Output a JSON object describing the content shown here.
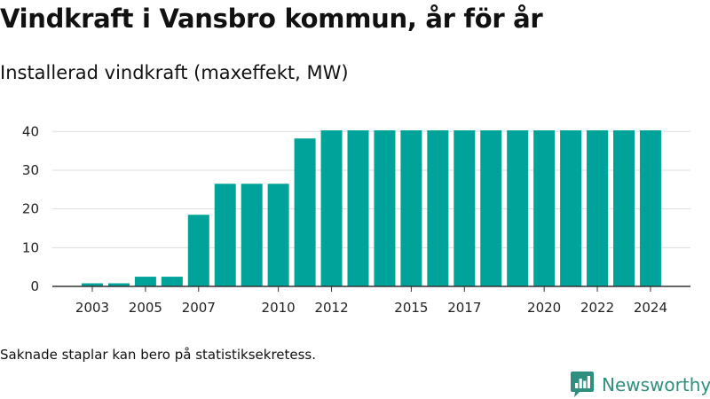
{
  "header": {
    "title": "Vindkraft i Vansbro kommun, år för år",
    "subtitle": "Installerad vindkraft (maxeffekt, MW)"
  },
  "footer": {
    "note": "Saknade staplar kan bero på statistiksekretess.",
    "brand": "Newsworthy"
  },
  "colors": {
    "bar": "#00a39a",
    "grid": "#dddddd",
    "axis": "#333333",
    "brand": "#2e8f7e"
  },
  "chart_data": {
    "type": "bar",
    "title": "Vindkraft i Vansbro kommun, år för år",
    "subtitle": "Installerad vindkraft (maxeffekt, MW)",
    "categories": [
      "2003",
      "2004",
      "2005",
      "2006",
      "2007",
      "2008",
      "2009",
      "2010",
      "2011",
      "2012",
      "2013",
      "2014",
      "2015",
      "2016",
      "2017",
      "2018",
      "2019",
      "2020",
      "2021",
      "2022",
      "2023",
      "2024"
    ],
    "values": [
      0.8,
      0.8,
      2.5,
      2.5,
      18.5,
      26.5,
      26.5,
      26.5,
      38.2,
      40.3,
      40.3,
      40.3,
      40.3,
      40.3,
      40.3,
      40.3,
      40.3,
      40.3,
      40.3,
      40.3,
      40.3,
      40.3
    ],
    "x_tick_labels": [
      "2003",
      "2005",
      "2007",
      "2010",
      "2012",
      "2015",
      "2017",
      "2020",
      "2022",
      "2024"
    ],
    "y_ticks": [
      0,
      10,
      20,
      30,
      40
    ],
    "ylim": [
      0,
      40.3
    ],
    "xlabel": "",
    "ylabel": "",
    "grid": "horizontal",
    "legend": "none"
  }
}
